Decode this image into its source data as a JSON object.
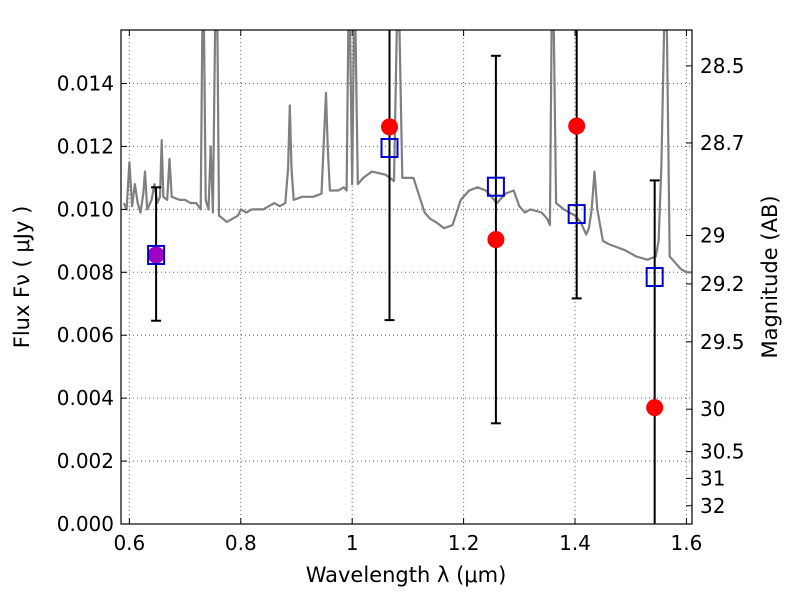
{
  "chart_data": {
    "type": "scatter",
    "xlabel": "Wavelength  λ (μm)",
    "ylabel": "Flux  Fν  ( μJy )",
    "y2label": "Magnitude (AB)",
    "xlim": [
      0.585,
      1.61
    ],
    "ylim": [
      0.0,
      0.0157
    ],
    "grid": true,
    "x_ticks": [
      {
        "v": 0.6,
        "label": "0.6"
      },
      {
        "v": 0.8,
        "label": "0.8"
      },
      {
        "v": 1.0,
        "label": "1"
      },
      {
        "v": 1.2,
        "label": "1.2"
      },
      {
        "v": 1.4,
        "label": "1.4"
      },
      {
        "v": 1.6,
        "label": "1.6"
      }
    ],
    "y_ticks": [
      {
        "v": 0.0,
        "label": "0.000"
      },
      {
        "v": 0.002,
        "label": "0.002"
      },
      {
        "v": 0.004,
        "label": "0.004"
      },
      {
        "v": 0.006,
        "label": "0.006"
      },
      {
        "v": 0.008,
        "label": "0.008"
      },
      {
        "v": 0.01,
        "label": "0.010"
      },
      {
        "v": 0.012,
        "label": "0.012"
      },
      {
        "v": 0.014,
        "label": "0.014"
      }
    ],
    "y2_ticks": [
      {
        "flux": 0.01456,
        "label": "28.5"
      },
      {
        "flux": 0.01211,
        "label": "28.7"
      },
      {
        "flux": 0.00917,
        "label": "29"
      },
      {
        "flux": 0.00763,
        "label": "29.2"
      },
      {
        "flux": 0.00579,
        "label": "29.5"
      },
      {
        "flux": 0.00365,
        "label": "30"
      },
      {
        "flux": 0.0023,
        "label": "30.5"
      },
      {
        "flux": 0.00145,
        "label": "31"
      },
      {
        "flux": 0.00058,
        "label": "32"
      }
    ],
    "series": [
      {
        "kind": "line",
        "color": "#7f7f7f",
        "points": [
          [
            0.59,
            0.0102
          ],
          [
            0.595,
            0.01
          ],
          [
            0.6,
            0.0115
          ],
          [
            0.605,
            0.0101
          ],
          [
            0.61,
            0.0108
          ],
          [
            0.615,
            0.0102
          ],
          [
            0.62,
            0.0099
          ],
          [
            0.625,
            0.0105
          ],
          [
            0.628,
            0.0112
          ],
          [
            0.632,
            0.01
          ],
          [
            0.64,
            0.0103
          ],
          [
            0.645,
            0.0108
          ],
          [
            0.65,
            0.0102
          ],
          [
            0.655,
            0.0104
          ],
          [
            0.658,
            0.0122
          ],
          [
            0.661,
            0.0104
          ],
          [
            0.668,
            0.0103
          ],
          [
            0.672,
            0.0116
          ],
          [
            0.676,
            0.0104
          ],
          [
            0.69,
            0.0103
          ],
          [
            0.7,
            0.0103
          ],
          [
            0.71,
            0.0102
          ],
          [
            0.72,
            0.0102
          ],
          [
            0.728,
            0.01
          ],
          [
            0.731,
            0.0157
          ],
          [
            0.734,
            0.0157
          ],
          [
            0.737,
            0.0103
          ],
          [
            0.742,
            0.01
          ],
          [
            0.746,
            0.012
          ],
          [
            0.75,
            0.0099
          ],
          [
            0.754,
            0.0157
          ],
          [
            0.758,
            0.0157
          ],
          [
            0.761,
            0.0098
          ],
          [
            0.775,
            0.0096
          ],
          [
            0.785,
            0.0097
          ],
          [
            0.795,
            0.0098
          ],
          [
            0.8,
            0.01
          ],
          [
            0.81,
            0.0099
          ],
          [
            0.82,
            0.01
          ],
          [
            0.84,
            0.01
          ],
          [
            0.86,
            0.0102
          ],
          [
            0.87,
            0.0101
          ],
          [
            0.88,
            0.0102
          ],
          [
            0.885,
            0.0113
          ],
          [
            0.888,
            0.0133
          ],
          [
            0.891,
            0.0113
          ],
          [
            0.895,
            0.0103
          ],
          [
            0.91,
            0.0104
          ],
          [
            0.93,
            0.0104
          ],
          [
            0.945,
            0.0105
          ],
          [
            0.95,
            0.0125
          ],
          [
            0.953,
            0.0137
          ],
          [
            0.956,
            0.012
          ],
          [
            0.96,
            0.0106
          ],
          [
            0.975,
            0.0106
          ],
          [
            0.985,
            0.0107
          ],
          [
            0.99,
            0.0106
          ],
          [
            0.993,
            0.0157
          ],
          [
            0.996,
            0.0157
          ],
          [
            1.0,
            0.0108
          ],
          [
            1.003,
            0.0157
          ],
          [
            1.006,
            0.0157
          ],
          [
            1.01,
            0.0108
          ],
          [
            1.02,
            0.011
          ],
          [
            1.035,
            0.0112
          ],
          [
            1.06,
            0.0111
          ],
          [
            1.075,
            0.0109
          ],
          [
            1.08,
            0.0157
          ],
          [
            1.085,
            0.0157
          ],
          [
            1.09,
            0.011
          ],
          [
            1.11,
            0.011
          ],
          [
            1.13,
            0.0099
          ],
          [
            1.14,
            0.0097
          ],
          [
            1.15,
            0.0096
          ],
          [
            1.165,
            0.0094
          ],
          [
            1.18,
            0.0095
          ],
          [
            1.195,
            0.0103
          ],
          [
            1.21,
            0.0106
          ],
          [
            1.225,
            0.0107
          ],
          [
            1.24,
            0.0106
          ],
          [
            1.25,
            0.0104
          ],
          [
            1.26,
            0.0102
          ],
          [
            1.265,
            0.0103
          ],
          [
            1.275,
            0.0105
          ],
          [
            1.29,
            0.0106
          ],
          [
            1.3,
            0.0101
          ],
          [
            1.31,
            0.0099
          ],
          [
            1.32,
            0.01
          ],
          [
            1.34,
            0.0099
          ],
          [
            1.35,
            0.0097
          ],
          [
            1.355,
            0.0095
          ],
          [
            1.358,
            0.0157
          ],
          [
            1.362,
            0.0157
          ],
          [
            1.366,
            0.0102
          ],
          [
            1.38,
            0.01
          ],
          [
            1.39,
            0.0099
          ],
          [
            1.4,
            0.0098
          ],
          [
            1.41,
            0.0096
          ],
          [
            1.42,
            0.0092
          ],
          [
            1.425,
            0.0094
          ],
          [
            1.43,
            0.01
          ],
          [
            1.435,
            0.0112
          ],
          [
            1.44,
            0.01
          ],
          [
            1.45,
            0.009
          ],
          [
            1.46,
            0.0089
          ],
          [
            1.475,
            0.0088
          ],
          [
            1.49,
            0.0087
          ],
          [
            1.51,
            0.0085
          ],
          [
            1.53,
            0.0084
          ],
          [
            1.545,
            0.0085
          ],
          [
            1.55,
            0.009
          ],
          [
            1.555,
            0.0114
          ],
          [
            1.56,
            0.0157
          ],
          [
            1.565,
            0.0157
          ],
          [
            1.57,
            0.0085
          ],
          [
            1.58,
            0.0083
          ],
          [
            1.59,
            0.0081
          ],
          [
            1.6,
            0.008
          ],
          [
            1.61,
            0.008
          ]
        ]
      },
      {
        "kind": "errorbar",
        "color": "#000000",
        "points": [
          {
            "x": 0.648,
            "lo": 0.00646,
            "hi": 0.0107
          },
          {
            "x": 1.067,
            "lo": 0.00648,
            "hi": 0.0157
          },
          {
            "x": 1.258,
            "lo": 0.0032,
            "hi": 0.01488
          },
          {
            "x": 1.403,
            "lo": 0.00717,
            "hi": 0.0157
          },
          {
            "x": 1.543,
            "lo": 0.0,
            "hi": 0.01092
          }
        ]
      },
      {
        "kind": "markers-circle",
        "color": "#ff0000",
        "points": [
          {
            "x": 0.648,
            "y": 0.00855
          },
          {
            "x": 1.067,
            "y": 0.01262
          },
          {
            "x": 1.258,
            "y": 0.00904
          },
          {
            "x": 1.403,
            "y": 0.01265
          },
          {
            "x": 1.543,
            "y": 0.0037
          }
        ]
      },
      {
        "kind": "markers-square",
        "color": "#0000cc",
        "points": [
          {
            "x": 0.648,
            "y": 0.00855
          },
          {
            "x": 1.067,
            "y": 0.01195
          },
          {
            "x": 1.258,
            "y": 0.01072
          },
          {
            "x": 1.403,
            "y": 0.00985
          },
          {
            "x": 1.543,
            "y": 0.00785
          }
        ]
      }
    ]
  }
}
